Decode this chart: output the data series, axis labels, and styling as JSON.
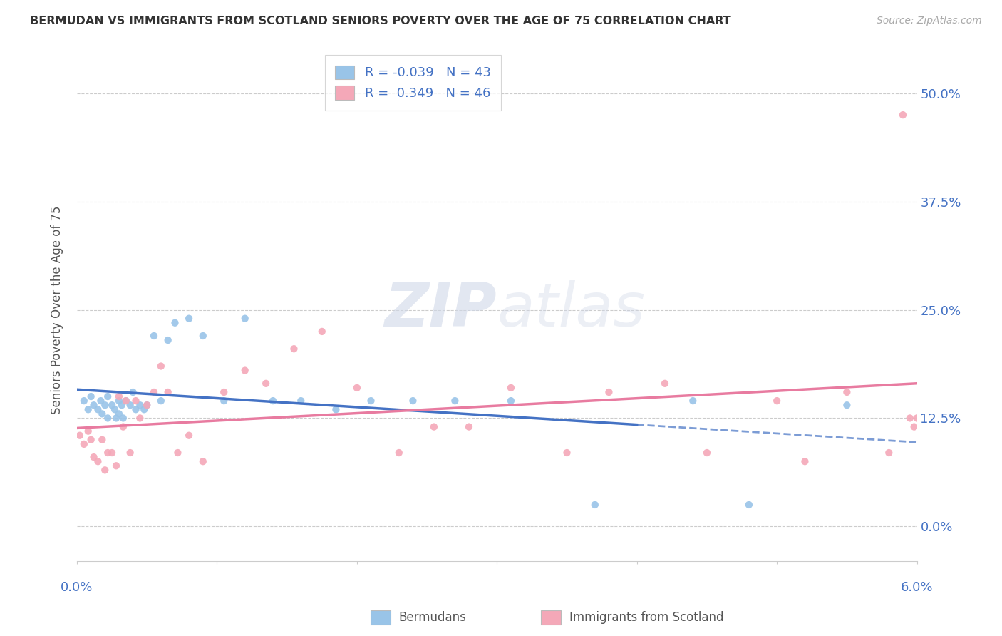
{
  "title": "BERMUDAN VS IMMIGRANTS FROM SCOTLAND SENIORS POVERTY OVER THE AGE OF 75 CORRELATION CHART",
  "source": "Source: ZipAtlas.com",
  "ylabel": "Seniors Poverty Over the Age of 75",
  "ytick_values": [
    0.0,
    12.5,
    25.0,
    37.5,
    50.0
  ],
  "xlim": [
    0.0,
    6.0
  ],
  "ylim": [
    -4.0,
    54.0
  ],
  "legend_label1": "Bermudans",
  "legend_label2": "Immigrants from Scotland",
  "r1": -0.039,
  "n1": 43,
  "r2": 0.349,
  "n2": 46,
  "color1": "#99c4e8",
  "color2": "#f4a8b8",
  "line_color1": "#4472c4",
  "line_color2": "#e87ba0",
  "bermudans_x": [
    0.05,
    0.08,
    0.1,
    0.12,
    0.15,
    0.17,
    0.18,
    0.2,
    0.22,
    0.22,
    0.25,
    0.27,
    0.28,
    0.3,
    0.3,
    0.32,
    0.33,
    0.35,
    0.38,
    0.4,
    0.42,
    0.45,
    0.48,
    0.5,
    0.55,
    0.6,
    0.65,
    0.7,
    0.8,
    0.9,
    1.05,
    1.2,
    1.4,
    1.6,
    1.85,
    2.1,
    2.4,
    2.7,
    3.1,
    3.7,
    4.4,
    4.8,
    5.5
  ],
  "bermudans_y": [
    14.5,
    13.5,
    15.0,
    14.0,
    13.5,
    14.5,
    13.0,
    14.0,
    15.0,
    12.5,
    14.0,
    13.5,
    12.5,
    14.5,
    13.0,
    14.0,
    12.5,
    14.5,
    14.0,
    15.5,
    13.5,
    14.0,
    13.5,
    14.0,
    22.0,
    14.5,
    21.5,
    23.5,
    24.0,
    22.0,
    14.5,
    24.0,
    14.5,
    14.5,
    13.5,
    14.5,
    14.5,
    14.5,
    14.5,
    2.5,
    14.5,
    2.5,
    14.0
  ],
  "scotland_x": [
    0.02,
    0.05,
    0.08,
    0.1,
    0.12,
    0.15,
    0.18,
    0.2,
    0.22,
    0.25,
    0.28,
    0.3,
    0.33,
    0.35,
    0.38,
    0.42,
    0.45,
    0.5,
    0.55,
    0.6,
    0.65,
    0.72,
    0.8,
    0.9,
    1.05,
    1.2,
    1.35,
    1.55,
    1.75,
    2.0,
    2.3,
    2.55,
    2.8,
    3.1,
    3.5,
    3.8,
    4.2,
    4.5,
    5.0,
    5.2,
    5.5,
    5.8,
    5.9,
    5.95,
    5.98,
    6.0
  ],
  "scotland_y": [
    10.5,
    9.5,
    11.0,
    10.0,
    8.0,
    7.5,
    10.0,
    6.5,
    8.5,
    8.5,
    7.0,
    15.0,
    11.5,
    14.5,
    8.5,
    14.5,
    12.5,
    14.0,
    15.5,
    18.5,
    15.5,
    8.5,
    10.5,
    7.5,
    15.5,
    18.0,
    16.5,
    20.5,
    22.5,
    16.0,
    8.5,
    11.5,
    11.5,
    16.0,
    8.5,
    15.5,
    16.5,
    8.5,
    14.5,
    7.5,
    15.5,
    8.5,
    47.5,
    12.5,
    11.5,
    12.5
  ]
}
